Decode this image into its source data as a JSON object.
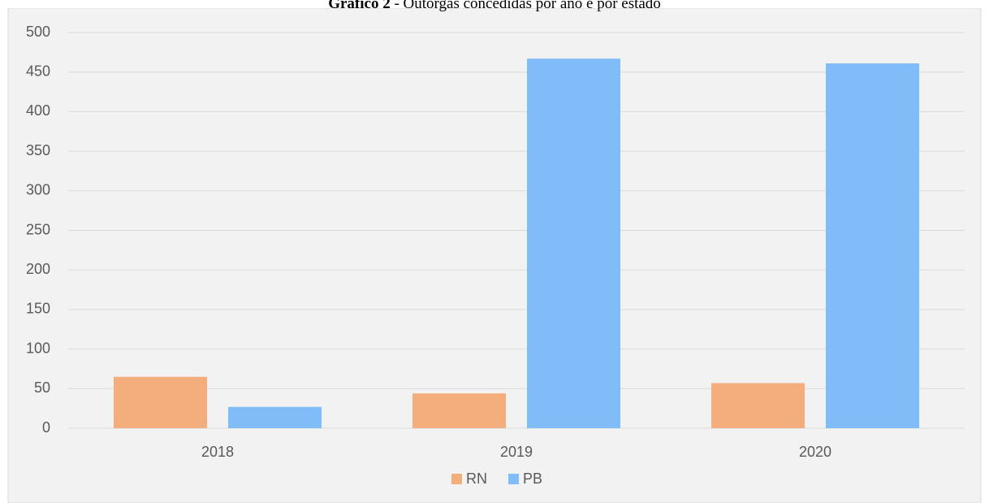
{
  "chart_data": {
    "type": "bar",
    "title_prefix": "Gráfico 2",
    "title": " - Outorgas concedidas por ano e por estado",
    "categories": [
      "2018",
      "2019",
      "2020"
    ],
    "series": [
      {
        "name": "RN",
        "color": "#f4ae7e",
        "values": [
          65,
          44,
          57
        ]
      },
      {
        "name": "PB",
        "color": "#80bcf8",
        "values": [
          27,
          467,
          461
        ]
      }
    ],
    "ylim": [
      0,
      500
    ],
    "yticks": [
      0,
      50,
      100,
      150,
      200,
      250,
      300,
      350,
      400,
      450,
      500
    ],
    "grid": true,
    "legend": "bottom"
  }
}
